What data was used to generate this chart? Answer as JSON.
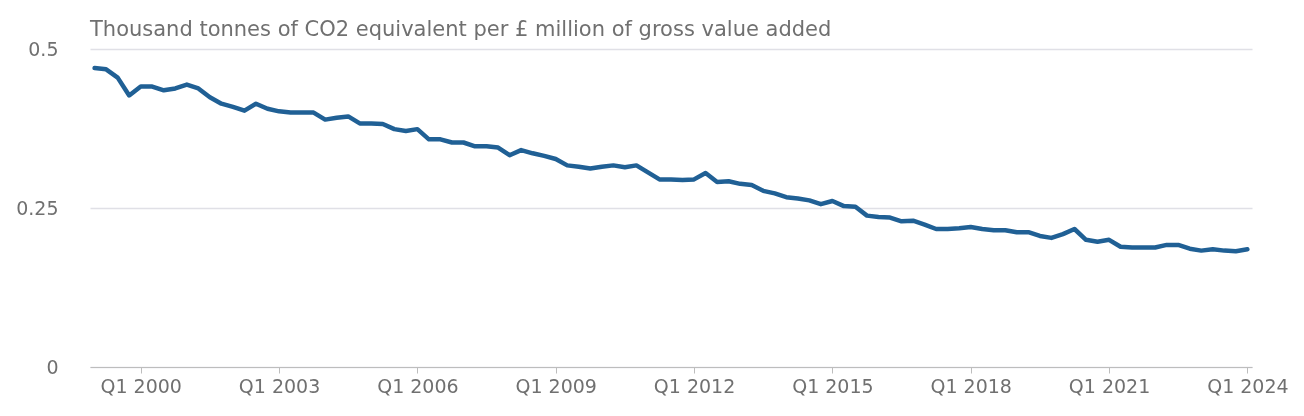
{
  "chart_data": {
    "type": "line",
    "title": "Thousand tonnes of CO2 equivalent per £ million of gross value added",
    "categories": [
      null,
      null,
      null,
      null,
      "Q1 2000",
      null,
      null,
      null,
      null,
      null,
      null,
      null,
      null,
      null,
      null,
      null,
      "Q1 2003",
      null,
      null,
      null,
      null,
      null,
      null,
      null,
      null,
      null,
      null,
      null,
      "Q1 2006",
      null,
      null,
      null,
      null,
      null,
      null,
      null,
      null,
      null,
      null,
      null,
      "Q1 2009",
      null,
      null,
      null,
      null,
      null,
      null,
      null,
      null,
      null,
      null,
      null,
      "Q1 2012",
      null,
      null,
      null,
      null,
      null,
      null,
      null,
      null,
      null,
      null,
      null,
      "Q1 2015",
      null,
      null,
      null,
      null,
      null,
      null,
      null,
      null,
      null,
      null,
      null,
      "Q1 2018",
      null,
      null,
      null,
      null,
      null,
      null,
      null,
      null,
      null,
      null,
      null,
      "Q1 2021",
      null,
      null,
      null,
      null,
      null,
      null,
      null,
      null,
      null,
      null,
      null,
      "Q1 2024"
    ],
    "values": [
      0.47,
      0.468,
      0.455,
      0.427,
      0.441,
      0.441,
      0.435,
      0.438,
      0.444,
      0.438,
      0.424,
      0.414,
      0.409,
      0.403,
      0.414,
      0.406,
      0.402,
      0.4,
      0.4,
      0.4,
      0.389,
      0.392,
      0.394,
      0.383,
      0.383,
      0.382,
      0.374,
      0.371,
      0.374,
      0.358,
      0.358,
      0.353,
      0.353,
      0.347,
      0.347,
      0.345,
      0.333,
      0.341,
      0.336,
      0.332,
      0.327,
      0.317,
      0.315,
      0.312,
      0.315,
      0.317,
      0.314,
      0.317,
      0.306,
      0.295,
      0.295,
      0.294,
      0.295,
      0.305,
      0.291,
      0.292,
      0.288,
      0.286,
      0.277,
      0.273,
      0.267,
      0.265,
      0.262,
      0.256,
      0.261,
      0.253,
      0.252,
      0.238,
      0.236,
      0.235,
      0.229,
      0.23,
      0.224,
      0.217,
      0.217,
      0.218,
      0.22,
      0.217,
      0.215,
      0.215,
      0.212,
      0.212,
      0.206,
      0.203,
      0.209,
      0.217,
      0.2,
      0.197,
      0.2,
      0.189,
      0.188,
      0.188,
      0.188,
      0.192,
      0.192,
      0.186,
      0.183,
      0.185,
      0.183,
      0.182,
      0.185
    ],
    "color": "#206095",
    "ylim": [
      0,
      0.5
    ],
    "yticks": [
      0,
      0.25,
      0.5
    ],
    "grid": "y"
  }
}
